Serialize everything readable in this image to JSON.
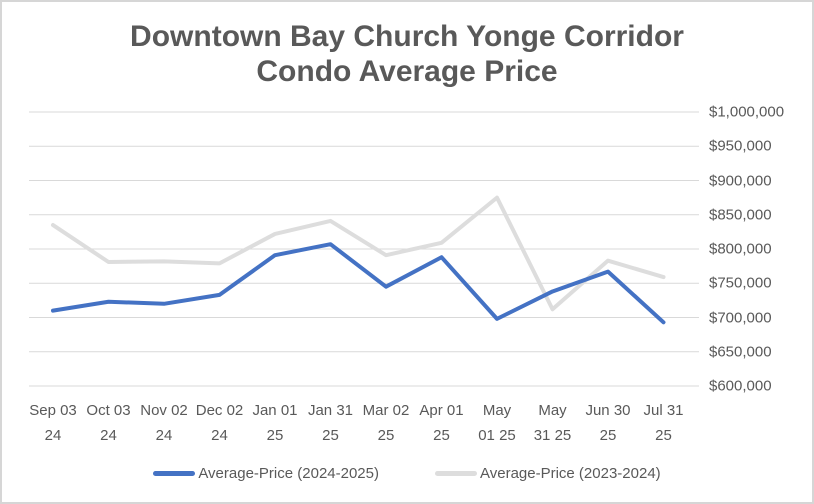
{
  "chart": {
    "title_lines": [
      "Downtown Bay Church Yonge Corridor",
      "Condo Average Price"
    ]
  },
  "chart_data": {
    "type": "line",
    "title": "Downtown Bay Church Yonge Corridor Condo Average Price",
    "categories": [
      "Sep 03 24",
      "Oct 03 24",
      "Nov 02 24",
      "Dec 02 24",
      "Jan 01 25",
      "Jan 31 25",
      "Mar 02 25",
      "Apr 01 25",
      "May 01 25",
      "May 31 25",
      "Jun 30 25",
      "Jul 31 25"
    ],
    "x_tick_lines": [
      [
        "Sep 03",
        "24"
      ],
      [
        "Oct 03",
        "24"
      ],
      [
        "Nov 02",
        "24"
      ],
      [
        "Dec 02",
        "24"
      ],
      [
        "Jan 01",
        "25"
      ],
      [
        "Jan 31",
        "25"
      ],
      [
        "Mar 02",
        "25"
      ],
      [
        "Apr 01",
        "25"
      ],
      [
        "May",
        "01 25"
      ],
      [
        "May",
        "31 25"
      ],
      [
        "Jun 30",
        "25"
      ],
      [
        "Jul 31",
        "25"
      ]
    ],
    "series": [
      {
        "name": "Average-Price (2024-2025)",
        "color": "#4472C4",
        "values": [
          710000,
          723000,
          720000,
          733000,
          791000,
          807000,
          745000,
          788000,
          698000,
          738000,
          767000,
          693000
        ]
      },
      {
        "name": "Average-Price (2023-2024)",
        "color": "#DDDDDD",
        "values": [
          835000,
          781000,
          782000,
          779000,
          822000,
          841000,
          791000,
          809000,
          875000,
          712000,
          783000,
          759000
        ]
      }
    ],
    "xlabel": "",
    "ylabel": "",
    "ylim": [
      600000,
      1000000
    ],
    "y_tick_step": 50000,
    "y_tick_labels": [
      "$600,000",
      "$650,000",
      "$700,000",
      "$750,000",
      "$800,000",
      "$850,000",
      "$900,000",
      "$950,000",
      "$1,000,000"
    ],
    "grid": "horizontal",
    "gridline_color": "#D9D9D9",
    "label_color": "#595959",
    "legend_position": "bottom"
  }
}
